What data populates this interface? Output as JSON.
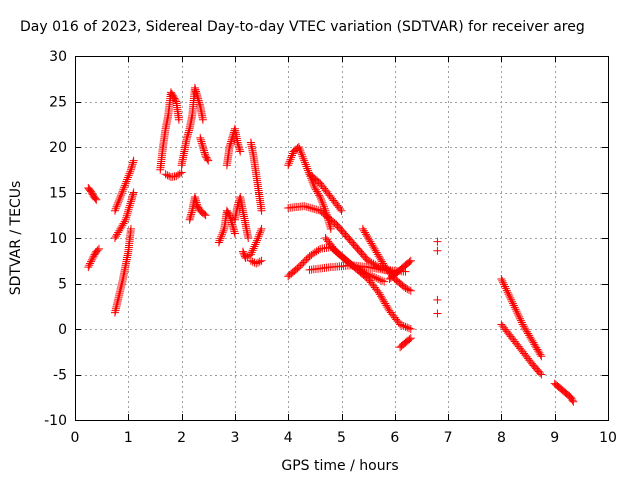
{
  "chart_data": {
    "type": "scatter",
    "title": "Day 016 of 2023, Sidereal Day-to-day VTEC variation (SDTVAR) for receiver areg",
    "xlabel": "GPS time / hours",
    "ylabel": "SDTVAR / TECUs",
    "xlim": [
      0,
      10
    ],
    "ylim": [
      -10,
      30
    ],
    "x_ticks": [
      0,
      1,
      2,
      3,
      4,
      5,
      6,
      7,
      8,
      9,
      10
    ],
    "y_ticks": [
      -10,
      -5,
      0,
      5,
      10,
      15,
      20,
      25,
      30
    ],
    "grid": true,
    "marker": "+",
    "color": "#ff0000",
    "segments": [
      [
        [
          0.25,
          15.5
        ],
        [
          0.3,
          15.1
        ],
        [
          0.35,
          14.6
        ],
        [
          0.4,
          14.2
        ]
      ],
      [
        [
          0.25,
          6.8
        ],
        [
          0.3,
          7.4
        ],
        [
          0.35,
          8.0
        ],
        [
          0.4,
          8.5
        ],
        [
          0.45,
          8.8
        ]
      ],
      [
        [
          0.75,
          1.8
        ],
        [
          0.82,
          3.5
        ],
        [
          0.9,
          5.5
        ],
        [
          0.95,
          7.0
        ],
        [
          1.0,
          8.5
        ],
        [
          1.05,
          11.0
        ]
      ],
      [
        [
          0.75,
          10.0
        ],
        [
          0.85,
          11.0
        ],
        [
          0.95,
          12.0
        ],
        [
          1.05,
          14.0
        ],
        [
          1.1,
          15.0
        ]
      ],
      [
        [
          0.75,
          13.0
        ],
        [
          0.85,
          14.5
        ],
        [
          0.95,
          16.0
        ],
        [
          1.05,
          17.5
        ],
        [
          1.1,
          18.5
        ]
      ],
      [
        [
          1.6,
          17.5
        ],
        [
          1.65,
          20.0
        ],
        [
          1.7,
          22.0
        ],
        [
          1.75,
          23.5
        ],
        [
          1.8,
          26.0
        ],
        [
          1.85,
          25.5
        ],
        [
          1.9,
          25.0
        ],
        [
          1.95,
          23.0
        ]
      ],
      [
        [
          1.7,
          17.0
        ],
        [
          1.8,
          16.7
        ],
        [
          1.9,
          16.8
        ],
        [
          2.0,
          17.2
        ]
      ],
      [
        [
          2.0,
          18.0
        ],
        [
          2.05,
          19.5
        ],
        [
          2.1,
          21.0
        ],
        [
          2.15,
          22.0
        ],
        [
          2.2,
          23.5
        ],
        [
          2.25,
          26.5
        ],
        [
          2.3,
          25.5
        ],
        [
          2.35,
          24.5
        ],
        [
          2.4,
          23.0
        ]
      ],
      [
        [
          2.15,
          12.0
        ],
        [
          2.2,
          13.0
        ],
        [
          2.25,
          14.5
        ],
        [
          2.3,
          13.5
        ],
        [
          2.35,
          13.0
        ],
        [
          2.45,
          12.5
        ]
      ],
      [
        [
          2.35,
          21.0
        ],
        [
          2.4,
          20.0
        ],
        [
          2.45,
          19.0
        ],
        [
          2.5,
          18.5
        ]
      ],
      [
        [
          2.7,
          9.5
        ],
        [
          2.8,
          11.0
        ],
        [
          2.85,
          13.0
        ],
        [
          2.9,
          12.5
        ],
        [
          2.95,
          11.5
        ],
        [
          3.0,
          10.5
        ]
      ],
      [
        [
          2.85,
          18.0
        ],
        [
          2.9,
          20.0
        ],
        [
          2.95,
          21.0
        ],
        [
          3.0,
          22.0
        ],
        [
          3.05,
          20.5
        ],
        [
          3.1,
          19.5
        ]
      ],
      [
        [
          3.0,
          12.0
        ],
        [
          3.05,
          13.5
        ],
        [
          3.1,
          14.5
        ],
        [
          3.15,
          13.0
        ],
        [
          3.2,
          11.5
        ],
        [
          3.25,
          10.0
        ]
      ],
      [
        [
          3.15,
          8.5
        ],
        [
          3.2,
          7.8
        ],
        [
          3.3,
          8.2
        ],
        [
          3.4,
          9.5
        ],
        [
          3.5,
          11.0
        ]
      ],
      [
        [
          3.3,
          20.5
        ],
        [
          3.35,
          19.0
        ],
        [
          3.4,
          17.0
        ],
        [
          3.45,
          15.0
        ],
        [
          3.5,
          13.0
        ]
      ],
      [
        [
          3.3,
          7.5
        ],
        [
          3.4,
          7.2
        ],
        [
          3.5,
          7.5
        ]
      ],
      [
        [
          4.0,
          5.8
        ],
        [
          4.2,
          6.8
        ],
        [
          4.4,
          8.0
        ],
        [
          4.6,
          8.8
        ],
        [
          4.8,
          9.0
        ],
        [
          5.0,
          8.0
        ],
        [
          5.2,
          7.0
        ],
        [
          5.5,
          6.0
        ],
        [
          5.8,
          5.2
        ]
      ],
      [
        [
          4.0,
          13.3
        ],
        [
          4.3,
          13.5
        ],
        [
          4.6,
          13.0
        ],
        [
          4.9,
          11.5
        ],
        [
          5.2,
          9.5
        ],
        [
          5.5,
          7.5
        ],
        [
          5.8,
          6.5
        ],
        [
          6.0,
          6.2
        ]
      ],
      [
        [
          4.0,
          18.0
        ],
        [
          4.1,
          19.5
        ],
        [
          4.2,
          20.0
        ],
        [
          4.3,
          18.5
        ],
        [
          4.4,
          17.0
        ],
        [
          4.5,
          15.5
        ],
        [
          4.6,
          14.5
        ],
        [
          4.7,
          13.0
        ],
        [
          4.8,
          11.0
        ]
      ],
      [
        [
          4.4,
          6.5
        ],
        [
          4.8,
          6.8
        ],
        [
          5.2,
          7.0
        ],
        [
          5.5,
          6.8
        ],
        [
          5.8,
          6.5
        ],
        [
          6.2,
          6.3
        ]
      ],
      [
        [
          4.4,
          17.0
        ],
        [
          4.6,
          16.0
        ],
        [
          4.8,
          14.5
        ],
        [
          5.0,
          13.0
        ]
      ],
      [
        [
          4.7,
          10.0
        ],
        [
          4.9,
          8.5
        ],
        [
          5.1,
          7.5
        ],
        [
          5.3,
          6.5
        ],
        [
          5.5,
          5.5
        ],
        [
          5.7,
          4.0
        ],
        [
          5.9,
          2.0
        ],
        [
          6.1,
          0.5
        ],
        [
          6.3,
          0.0
        ]
      ],
      [
        [
          5.4,
          11.0
        ],
        [
          5.6,
          9.0
        ],
        [
          5.8,
          7.0
        ],
        [
          6.0,
          5.5
        ],
        [
          6.2,
          4.5
        ],
        [
          6.3,
          4.2
        ]
      ],
      [
        [
          5.9,
          5.5
        ],
        [
          6.0,
          6.0
        ],
        [
          6.1,
          6.5
        ],
        [
          6.2,
          7.0
        ],
        [
          6.3,
          7.5
        ]
      ],
      [
        [
          6.1,
          -2.0
        ],
        [
          6.2,
          -1.5
        ],
        [
          6.3,
          -1.0
        ]
      ],
      [
        [
          6.8,
          9.6
        ],
        [
          6.8,
          8.6
        ],
        [
          6.8,
          3.2
        ],
        [
          6.8,
          1.7
        ]
      ],
      [
        [
          8.0,
          5.5
        ],
        [
          8.2,
          3.0
        ],
        [
          8.4,
          0.5
        ],
        [
          8.6,
          -1.5
        ],
        [
          8.75,
          -3.0
        ]
      ],
      [
        [
          8.0,
          0.5
        ],
        [
          8.2,
          -1.0
        ],
        [
          8.4,
          -2.5
        ],
        [
          8.6,
          -4.0
        ],
        [
          8.75,
          -5.0
        ]
      ],
      [
        [
          9.0,
          -6.0
        ],
        [
          9.1,
          -6.5
        ],
        [
          9.2,
          -7.0
        ],
        [
          9.3,
          -7.5
        ],
        [
          9.35,
          -8.0
        ]
      ]
    ]
  }
}
